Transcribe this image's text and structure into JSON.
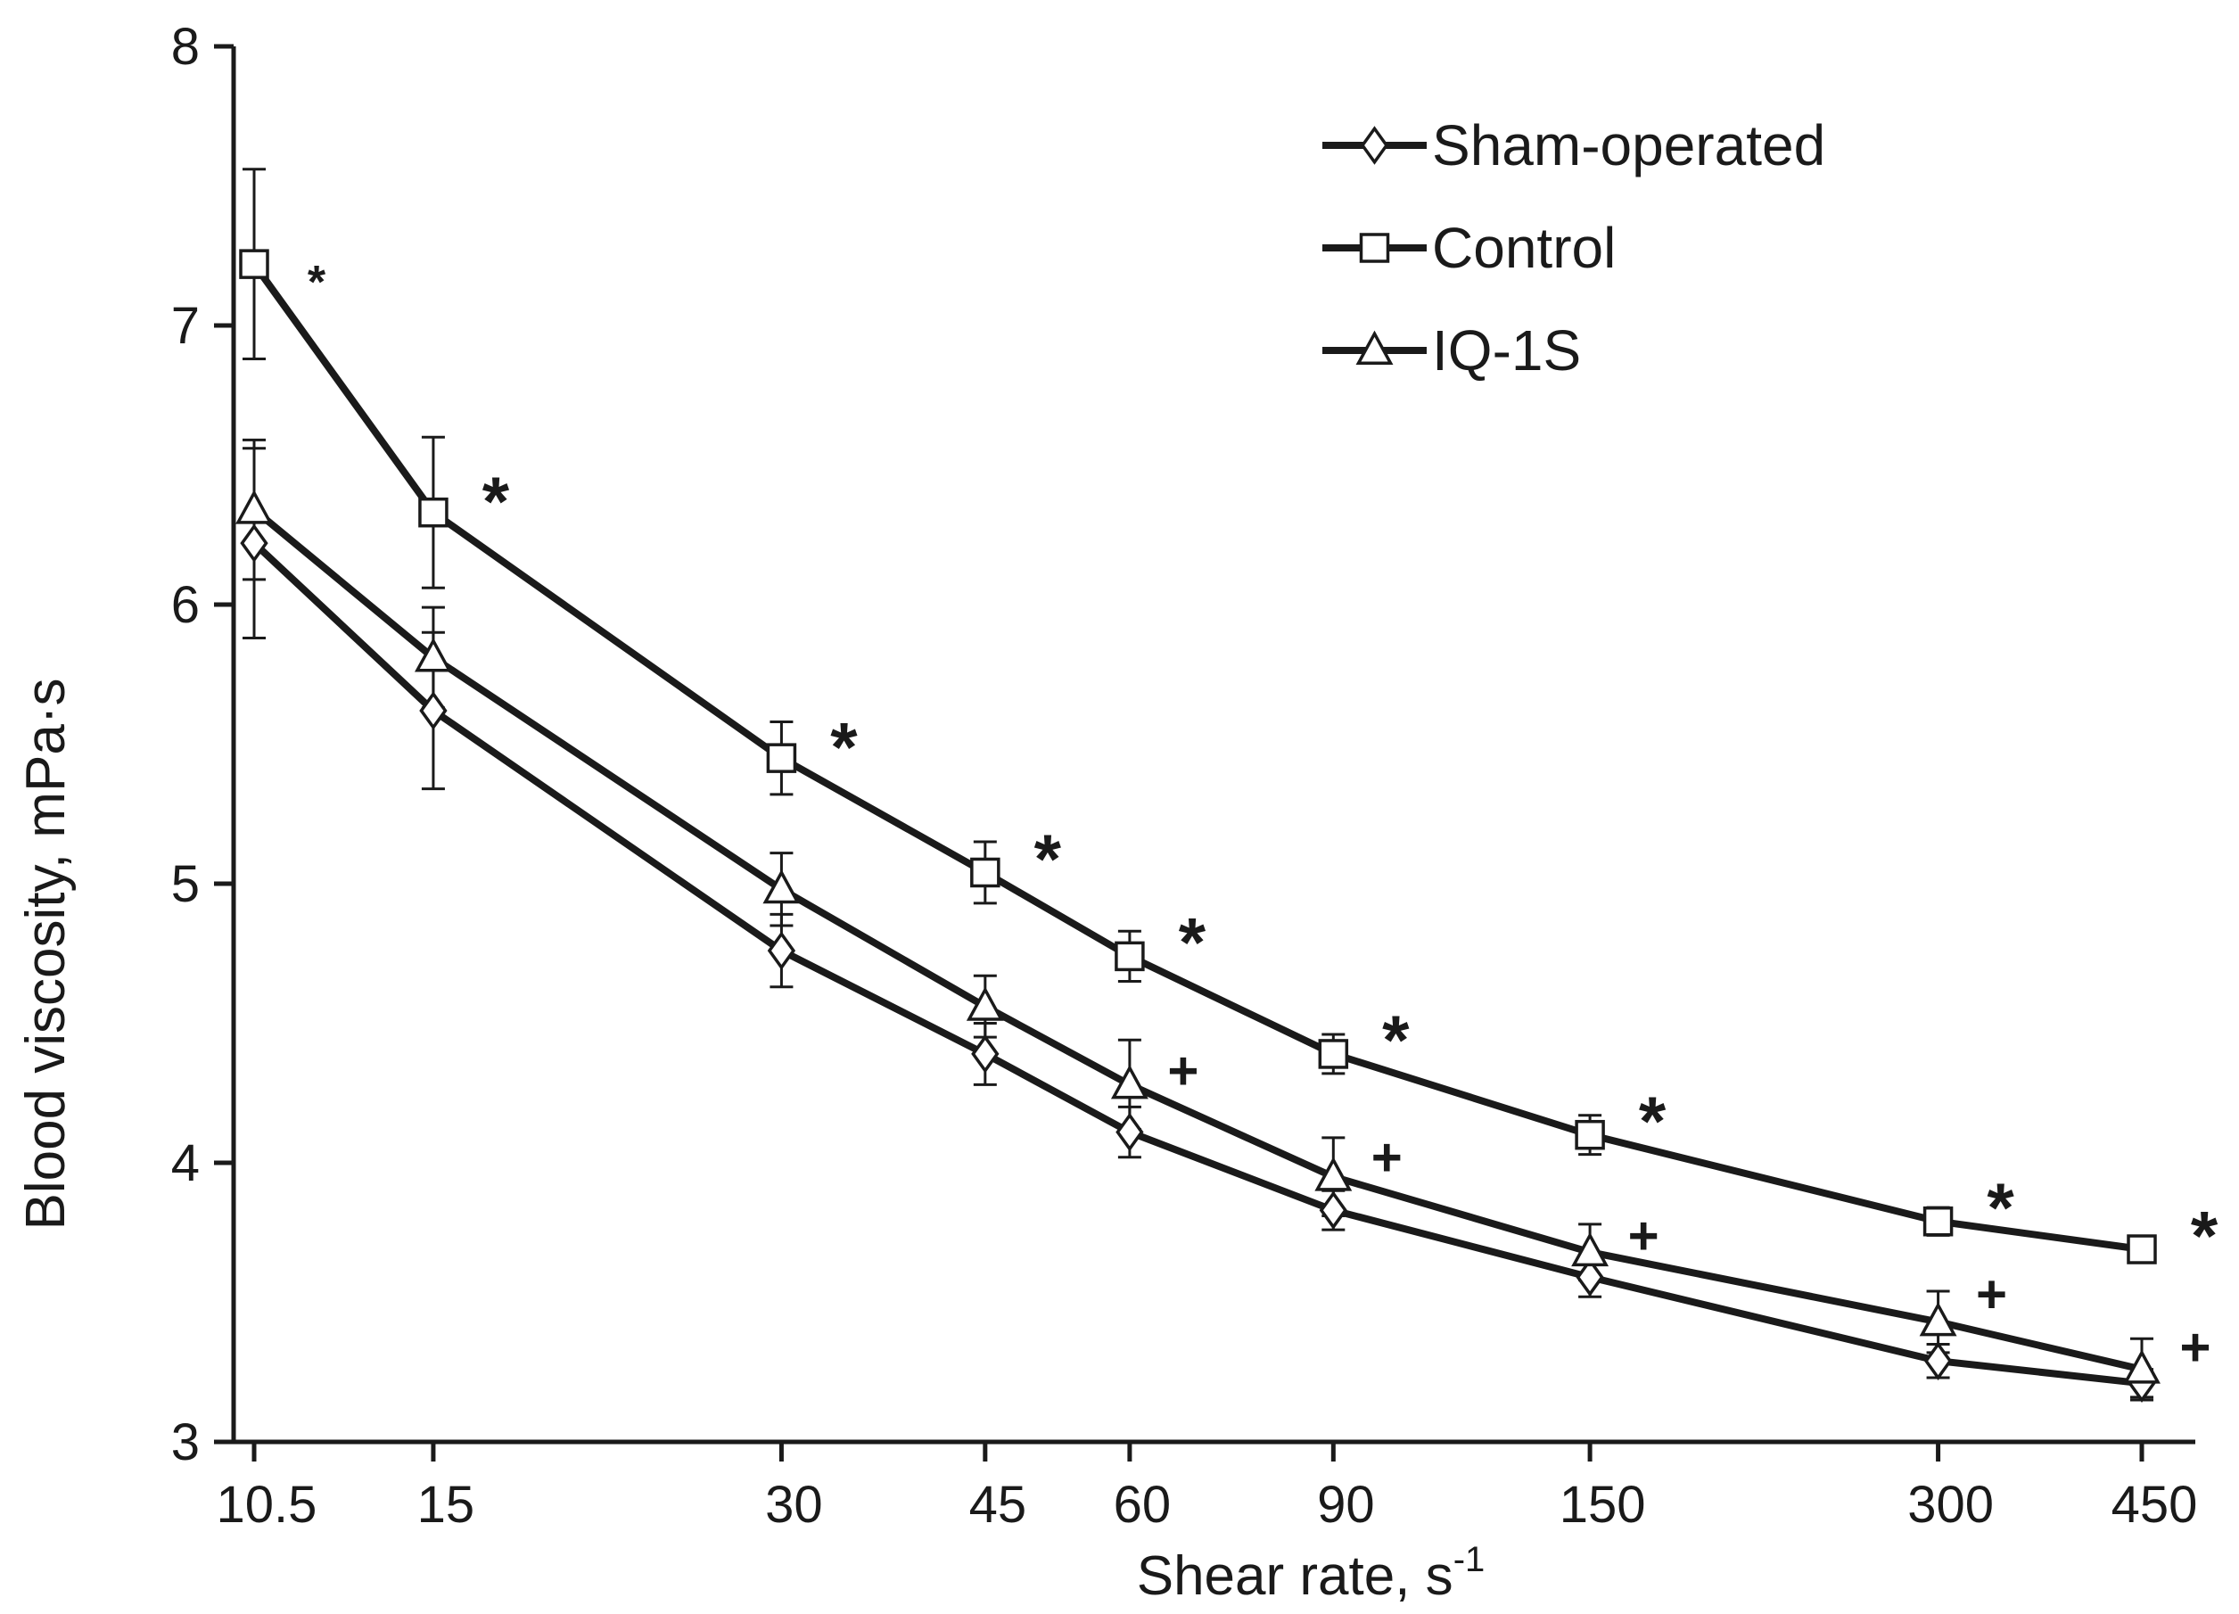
{
  "chart_data": {
    "type": "line",
    "title": "",
    "xlabel": "Shear rate, s",
    "xlabel_superscript": "-1",
    "ylabel": "Blood viscosity, mPa·s",
    "x_scale": "log",
    "x": [
      10.5,
      15,
      30,
      45,
      60,
      90,
      150,
      300,
      450
    ],
    "x_tick_labels": [
      "10.5",
      "15",
      "30",
      "45",
      "60",
      "90",
      "150",
      "300",
      "450"
    ],
    "y_ticks": [
      "3",
      "4",
      "5",
      "6",
      "7",
      "8"
    ],
    "ylim": [
      3,
      8
    ],
    "grid": false,
    "legend_position": "top-right",
    "series": [
      {
        "name": "Sham-operated",
        "marker": "diamond",
        "values": [
          6.22,
          5.62,
          4.76,
          4.39,
          4.11,
          3.83,
          3.59,
          3.29,
          3.21
        ],
        "errors": [
          0.34,
          0.28,
          0.13,
          0.11,
          0.09,
          0.07,
          0.07,
          0.06,
          0.05
        ]
      },
      {
        "name": "Control",
        "marker": "square",
        "values": [
          7.22,
          6.33,
          5.45,
          5.04,
          4.74,
          4.39,
          4.1,
          3.79,
          3.69
        ],
        "errors": [
          0.34,
          0.27,
          0.13,
          0.11,
          0.09,
          0.07,
          0.07,
          0.05,
          0.02
        ]
      },
      {
        "name": "IQ-1S",
        "marker": "triangle",
        "values": [
          6.34,
          5.81,
          4.98,
          4.56,
          4.28,
          3.95,
          3.68,
          3.43,
          3.26
        ],
        "errors": [
          0.25,
          0.18,
          0.13,
          0.11,
          0.16,
          0.14,
          0.1,
          0.11,
          0.11
        ]
      }
    ],
    "annotations": [
      {
        "text": "*",
        "x": 10.5,
        "y": 7.22,
        "size": "small"
      },
      {
        "text": "*",
        "x": 15,
        "y": 6.45
      },
      {
        "text": "*",
        "x": 30,
        "y": 5.57
      },
      {
        "text": "*",
        "x": 45,
        "y": 5.17
      },
      {
        "text": "*",
        "x": 60,
        "y": 4.87
      },
      {
        "text": "*",
        "x": 90,
        "y": 4.52
      },
      {
        "text": "*",
        "x": 150,
        "y": 4.23
      },
      {
        "text": "*",
        "x": 300,
        "y": 3.92
      },
      {
        "text": "*",
        "x": 450,
        "y": 3.82
      },
      {
        "text": "+",
        "x": 60,
        "y": 4.34
      },
      {
        "text": "+",
        "x": 90,
        "y": 4.03
      },
      {
        "text": "+",
        "x": 150,
        "y": 3.75
      },
      {
        "text": "+",
        "x": 300,
        "y": 3.54
      },
      {
        "text": "+",
        "x": 450,
        "y": 3.35
      }
    ]
  }
}
